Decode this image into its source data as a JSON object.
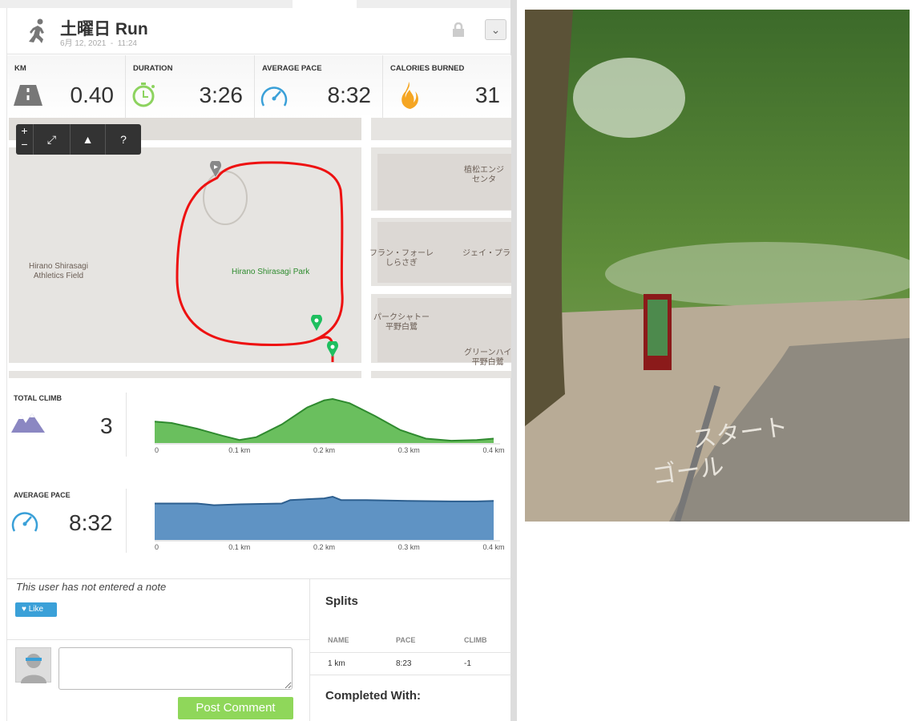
{
  "header": {
    "title": "土曜日 Run",
    "date": "6月 12, 2021  -  11:24",
    "activity_icon": "runner-icon",
    "lock_icon": "lock-icon",
    "menu_icon": "chevron-down-icon"
  },
  "stats": [
    {
      "label": "KM",
      "value": "0.40",
      "icon": "road-icon",
      "color": "#777777"
    },
    {
      "label": "DURATION",
      "value": "3:26",
      "icon": "stopwatch-icon",
      "color": "#8dd35f"
    },
    {
      "label": "AVERAGE PACE",
      "value": "8:32",
      "icon": "speedometer-icon",
      "color": "#3aa0d8"
    },
    {
      "label": "CALORIES BURNED",
      "value": "31",
      "icon": "flame-icon",
      "color": "#f5a623"
    }
  ],
  "map": {
    "controls": {
      "zoom_in": "+",
      "zoom_out": "−",
      "fullscreen": "⤢",
      "terrain": "▲",
      "help": "?"
    },
    "labels": {
      "field": "Hirano Shirasagi\nAthletics Field",
      "park": "Hirano Shirasagi Park",
      "poi1": "フラン・フォーレ\nしらさぎ",
      "poi2": "パークシャトー\n平野白鷺",
      "poi3": "グリーンハイ\n平野白鷺",
      "poi4": "植松エンジ\nセンタ",
      "poi5": "ジェイ・プラ"
    },
    "route_color": "#ee1111"
  },
  "chart_data": [
    {
      "type": "area",
      "label": "TOTAL CLIMB",
      "value": "3",
      "icon": "mountains-icon",
      "color": "#5cb85c",
      "x": [
        0,
        0.02,
        0.05,
        0.08,
        0.1,
        0.12,
        0.15,
        0.18,
        0.2,
        0.21,
        0.23,
        0.26,
        0.29,
        0.32,
        0.35,
        0.38,
        0.4
      ],
      "y": [
        1.4,
        1.3,
        0.9,
        0.4,
        0.1,
        0.3,
        1.2,
        2.4,
        2.9,
        3.0,
        2.7,
        1.8,
        0.8,
        0.2,
        0.05,
        0.1,
        0.2
      ],
      "xticks": [
        "0",
        "0.1 km",
        "0.2 km",
        "0.3 km",
        "0.4 km"
      ],
      "xlim": [
        0,
        0.4
      ]
    },
    {
      "type": "area",
      "label": "AVERAGE PACE",
      "value": "8:32",
      "icon": "speedometer-icon",
      "color": "#4f86bb",
      "x": [
        0,
        0.05,
        0.07,
        0.1,
        0.15,
        0.16,
        0.18,
        0.2,
        0.21,
        0.22,
        0.25,
        0.3,
        0.35,
        0.38,
        0.4
      ],
      "y": [
        8.6,
        8.6,
        8.2,
        8.4,
        8.6,
        9.4,
        9.6,
        9.8,
        10.2,
        9.4,
        9.4,
        9.2,
        9.1,
        9.1,
        9.2
      ],
      "xticks": [
        "0",
        "0.1 km",
        "0.2 km",
        "0.3 km",
        "0.4 km"
      ],
      "xlim": [
        0,
        0.4
      ]
    }
  ],
  "note": {
    "text": "This user has not entered a note",
    "like": "Like"
  },
  "comment": {
    "placeholder": "",
    "post": "Post Comment"
  },
  "splits": {
    "title": "Splits",
    "columns": [
      "NAME",
      "PACE",
      "CLIMB"
    ],
    "rows": [
      [
        "1 km",
        "8:23",
        "-1"
      ]
    ],
    "completed_with": "Completed With:"
  }
}
